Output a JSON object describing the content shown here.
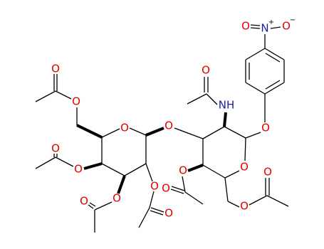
{
  "atoms": [
    "O",
    "N",
    "+",
    "O",
    "−",
    "O",
    "NH",
    "O",
    "O",
    "O",
    "O",
    "O",
    "O",
    "O",
    "O",
    "O",
    "O",
    "O",
    "O",
    "O",
    "O",
    "O",
    "O"
  ]
}
